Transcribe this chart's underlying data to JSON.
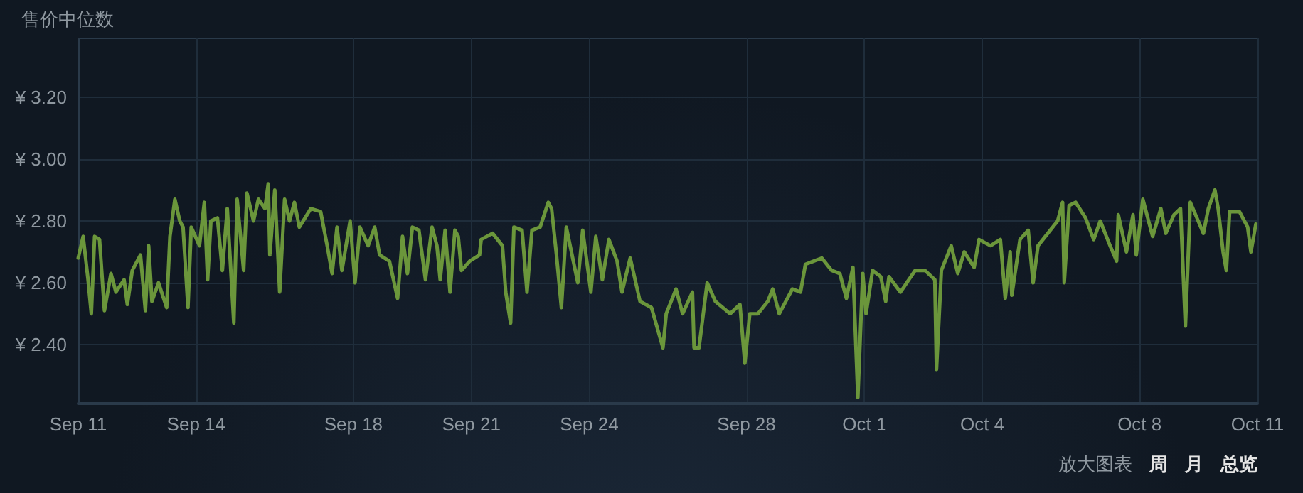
{
  "chart_data": {
    "type": "line",
    "ylabel": "售价中位数",
    "annotations": [
      "放大图表",
      "周",
      "月",
      "总览"
    ],
    "x": [
      "--09-11T00:00",
      "--09-11T03:00",
      "--09-11T06:00",
      "--09-11T08:00",
      "--09-11T10:00",
      "--09-11T13:00",
      "--09-11T16:00",
      "--09-11T20:00",
      "--09-11T23:00",
      "--09-12T04:00",
      "--09-12T06:00",
      "--09-12T09:00",
      "--09-12T14:00",
      "--09-12T17:00",
      "--09-12T19:00",
      "--09-12T21:00",
      "--09-13T01:00",
      "--09-13T06:00",
      "--09-13T08:00",
      "--09-13T11:00",
      "--09-13T14:00",
      "--09-13T16:00",
      "--09-13T19:00",
      "--09-13T21:00",
      "--09-14T02:00",
      "--09-14T05:00",
      "--09-14T07:00",
      "--09-14T09:00",
      "--09-14T13:00",
      "--09-14T16:00",
      "--09-14T19:00",
      "--09-14T23:00",
      "--09-15T01:00",
      "--09-15T05:00",
      "--09-15T07:00",
      "--09-15T11:00",
      "--09-15T14:00",
      "--09-15T18:00",
      "--09-15T20:00",
      "--09-15T21:00",
      "--09-16T00:00",
      "--09-16T03:00",
      "--09-16T06:00",
      "--09-16T09:00",
      "--09-16T12:00",
      "--09-16T15:00",
      "--09-16T22:00",
      "--09-17T04:00",
      "--09-17T08:00",
      "--09-17T11:00",
      "--09-17T14:00",
      "--09-17T17:00",
      "--09-17T22:00",
      "--09-18T01:00",
      "--09-18T04:00",
      "--09-18T09:00",
      "--09-18T13:00",
      "--09-18T16:00",
      "--09-18T22:00",
      "--09-19T03:00",
      "--09-19T06:00",
      "--09-19T09:00",
      "--09-19T12:00",
      "--09-19T16:00",
      "--09-19T20:00",
      "--09-20T00:00",
      "--09-20T03:00",
      "--09-20T05:00",
      "--09-20T08:00",
      "--09-20T11:00",
      "--09-20T14:00",
      "--09-20T16:00",
      "--09-20T18:00",
      "--09-20T23:00",
      "--09-21T05:00",
      "--09-21T06:00",
      "--09-21T13:00",
      "--09-21T19:00",
      "--09-21T21:00",
      "--09-22T00:00",
      "--09-22T02:00",
      "--09-22T07:00",
      "--09-22T10:00",
      "--09-22T13:00",
      "--09-22T18:00",
      "--09-22T23:00",
      "--09-23T01:00",
      "--09-23T04:00",
      "--09-23T07:00",
      "--09-23T10:00",
      "--09-23T17:00",
      "--09-23T20:00",
      "--09-24T01:00",
      "--09-24T04:00",
      "--09-24T08:00",
      "--09-24T12:00",
      "--09-24T17:00",
      "--09-24T20:00",
      "--09-25T01:00",
      "--09-25T07:00",
      "--09-25T14:00",
      "--09-25T21:00",
      "--09-25T23:00",
      "--09-26T05:00",
      "--09-26T09:00",
      "--09-26T15:00",
      "--09-26T16:00",
      "--09-26T19:00",
      "--09-27T00:00",
      "--09-27T05:00",
      "--09-27T14:00",
      "--09-27T20:00",
      "--09-27T23:00",
      "--09-28T02:00",
      "--09-28T07:00",
      "--09-28T13:00",
      "--09-28T16:00",
      "--09-28T20:00",
      "--09-29T04:00",
      "--09-29T09:00",
      "--09-29T12:00",
      "--09-29T17:00",
      "--09-29T22:00",
      "--09-30T04:00",
      "--09-30T09:00",
      "--09-30T13:00",
      "--09-30T17:00",
      "--09-30T20:00",
      "--09-30T23:00",
      "--10-01T01:00",
      "--10-01T05:00",
      "--10-01T10:00",
      "--10-01T13:00",
      "--10-01T15:00",
      "--10-01T22:00",
      "--10-02T07:00",
      "--10-02T13:00",
      "--10-02T19:00",
      "--10-02T20:00",
      "--10-02T23:00",
      "--10-03T05:00",
      "--10-03T09:00",
      "--10-03T13:00",
      "--10-03T19:00",
      "--10-03T22:00",
      "--10-04T05:00",
      "--10-04T11:00",
      "--10-04T14:00",
      "--10-04T17:00",
      "--10-04T18:00",
      "--10-04T23:00",
      "--10-05T04:00",
      "--10-05T07:00",
      "--10-05T10:00",
      "--10-05T16:00",
      "--10-05T22:00",
      "--10-06T01:00",
      "--10-06T02:00",
      "--10-06T05:00",
      "--10-06T09:00",
      "--10-06T15:00",
      "--10-06T20:00",
      "--10-07T00:00",
      "--10-07T06:00",
      "--10-07T10:00",
      "--10-07T11:00",
      "--10-07T16:00",
      "--10-07T20:00",
      "--10-07T22:00",
      "--10-08T02:00",
      "--10-08T08:00",
      "--10-08T13:00",
      "--10-08T16:00",
      "--10-08T21:00",
      "--10-09T01:00",
      "--10-09T04:00",
      "--10-09T07:00",
      "--10-09T11:00",
      "--10-09T15:00",
      "--10-09T18:00",
      "--10-09T22:00",
      "--10-10T00:00",
      "--10-10T03:00",
      "--10-10T05:00",
      "--10-10T07:00",
      "--10-10T13:00",
      "--10-10T18:00",
      "--10-10T20:00",
      "--10-10T23:00"
    ],
    "series": [
      {
        "color": "#6b963b",
        "values": [
          2.68,
          2.75,
          2.61,
          2.5,
          2.75,
          2.74,
          2.51,
          2.63,
          2.57,
          2.61,
          2.53,
          2.64,
          2.69,
          2.51,
          2.72,
          2.54,
          2.6,
          2.52,
          2.75,
          2.87,
          2.8,
          2.78,
          2.52,
          2.78,
          2.72,
          2.86,
          2.61,
          2.8,
          2.81,
          2.64,
          2.84,
          2.47,
          2.87,
          2.64,
          2.89,
          2.8,
          2.87,
          2.84,
          2.92,
          2.69,
          2.9,
          2.57,
          2.87,
          2.8,
          2.86,
          2.78,
          2.84,
          2.83,
          2.72,
          2.63,
          2.78,
          2.64,
          2.8,
          2.6,
          2.78,
          2.72,
          2.78,
          2.69,
          2.67,
          2.55,
          2.75,
          2.63,
          2.78,
          2.77,
          2.61,
          2.78,
          2.72,
          2.61,
          2.77,
          2.57,
          2.77,
          2.75,
          2.64,
          2.67,
          2.69,
          2.74,
          2.76,
          2.72,
          2.57,
          2.47,
          2.78,
          2.77,
          2.57,
          2.77,
          2.78,
          2.86,
          2.84,
          2.69,
          2.52,
          2.78,
          2.6,
          2.77,
          2.57,
          2.75,
          2.61,
          2.74,
          2.67,
          2.57,
          2.68,
          2.54,
          2.52,
          2.39,
          2.5,
          2.58,
          2.5,
          2.57,
          2.39,
          2.39,
          2.6,
          2.54,
          2.5,
          2.53,
          2.34,
          2.5,
          2.5,
          2.54,
          2.58,
          2.5,
          2.58,
          2.57,
          2.66,
          2.67,
          2.68,
          2.64,
          2.63,
          2.55,
          2.65,
          2.23,
          2.63,
          2.5,
          2.64,
          2.62,
          2.54,
          2.62,
          2.57,
          2.64,
          2.64,
          2.61,
          2.32,
          2.64,
          2.72,
          2.63,
          2.7,
          2.65,
          2.74,
          2.72,
          2.74,
          2.55,
          2.7,
          2.56,
          2.74,
          2.77,
          2.6,
          2.72,
          2.76,
          2.8,
          2.86,
          2.6,
          2.85,
          2.86,
          2.81,
          2.74,
          2.8,
          2.72,
          2.67,
          2.82,
          2.7,
          2.82,
          2.69,
          2.87,
          2.75,
          2.84,
          2.76,
          2.82,
          2.84,
          2.46,
          2.86,
          2.81,
          2.76,
          2.84,
          2.9,
          2.84,
          2.7,
          2.64,
          2.83,
          2.83,
          2.78,
          2.7,
          2.79
        ]
      }
    ],
    "xlim": [
      "--09-11T00:00",
      "--10-11T00:00"
    ],
    "xticks": [
      {
        "value": "--09-11",
        "label": "Sep 11"
      },
      {
        "value": "--09-14",
        "label": "Sep 14"
      },
      {
        "value": "--09-18",
        "label": "Sep 18"
      },
      {
        "value": "--09-21",
        "label": "Sep 21"
      },
      {
        "value": "--09-24",
        "label": "Sep 24"
      },
      {
        "value": "--09-28",
        "label": "Sep 28"
      },
      {
        "value": "--10-01",
        "label": "Oct 1"
      },
      {
        "value": "--10-04",
        "label": "Oct 4"
      },
      {
        "value": "--10-08",
        "label": "Oct 8"
      },
      {
        "value": "--10-11",
        "label": "Oct 11"
      }
    ],
    "ylim": [
      2.21,
      3.39
    ],
    "yticks": [
      {
        "value": 2.4,
        "label": "¥ 2.40"
      },
      {
        "value": 2.6,
        "label": "¥ 2.60"
      },
      {
        "value": 2.8,
        "label": "¥ 2.80"
      },
      {
        "value": 3.0,
        "label": "¥ 3.00"
      },
      {
        "value": 3.2,
        "label": "¥ 3.20"
      }
    ],
    "grid": true,
    "marker": "none",
    "line_style": "solid"
  }
}
